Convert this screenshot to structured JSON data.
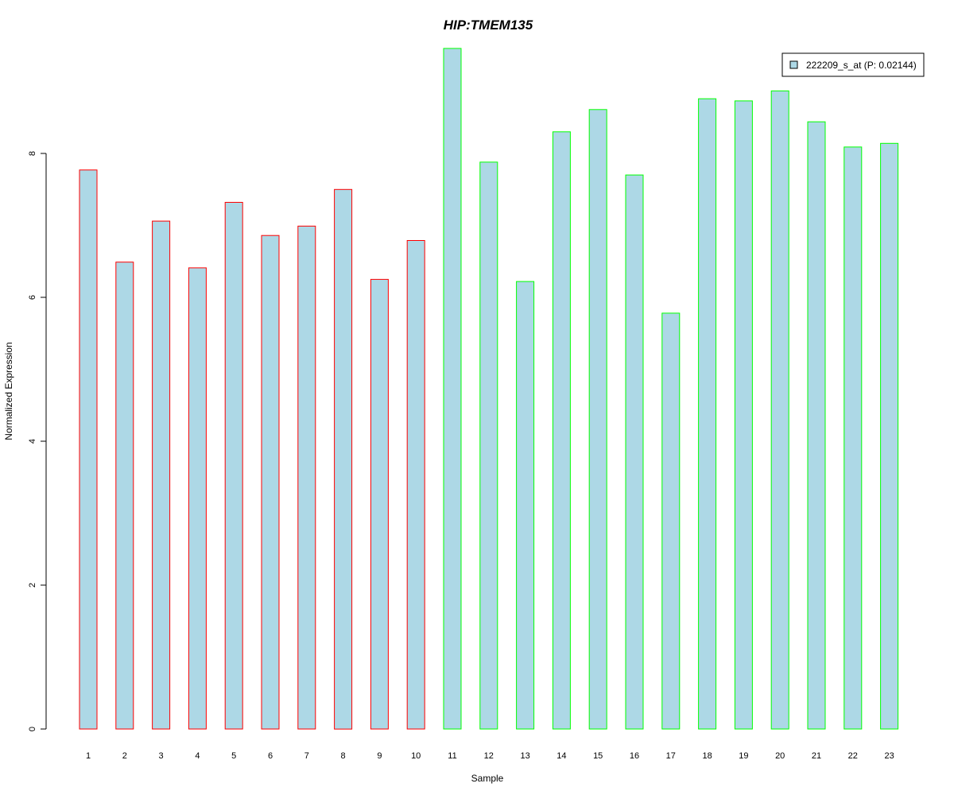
{
  "chart_data": {
    "type": "bar",
    "title": "HIP:TMEM135",
    "title_color": "#0000CC",
    "xlabel": "Sample",
    "ylabel": "Normalized Expression",
    "ylim": [
      0,
      9.5
    ],
    "yticks": [
      "0",
      "2",
      "4",
      "6",
      "8"
    ],
    "categories": [
      "1",
      "2",
      "3",
      "4",
      "5",
      "6",
      "7",
      "8",
      "9",
      "10",
      "11",
      "12",
      "13",
      "14",
      "15",
      "16",
      "17",
      "18",
      "19",
      "20",
      "21",
      "22",
      "23"
    ],
    "series": [
      {
        "name": "222209_s_at (P: 0.02144)",
        "values": [
          7.77,
          6.49,
          7.06,
          6.41,
          7.32,
          6.86,
          6.99,
          7.5,
          6.25,
          6.79,
          9.46,
          7.88,
          6.22,
          8.3,
          8.61,
          7.7,
          5.78,
          8.76,
          8.73,
          8.87,
          8.44,
          8.09,
          8.14
        ],
        "fill": "#ADD8E6"
      }
    ],
    "group_border_colors": [
      "#FF0000",
      "#FF0000",
      "#FF0000",
      "#FF0000",
      "#FF0000",
      "#FF0000",
      "#FF0000",
      "#FF0000",
      "#FF0000",
      "#FF0000",
      "#00FF00",
      "#00FF00",
      "#00FF00",
      "#00FF00",
      "#00FF00",
      "#00FF00",
      "#00FF00",
      "#00FF00",
      "#00FF00",
      "#00FF00",
      "#00FF00",
      "#00FF00",
      "#00FF00"
    ],
    "legend_position": "top-right",
    "grid": false
  }
}
